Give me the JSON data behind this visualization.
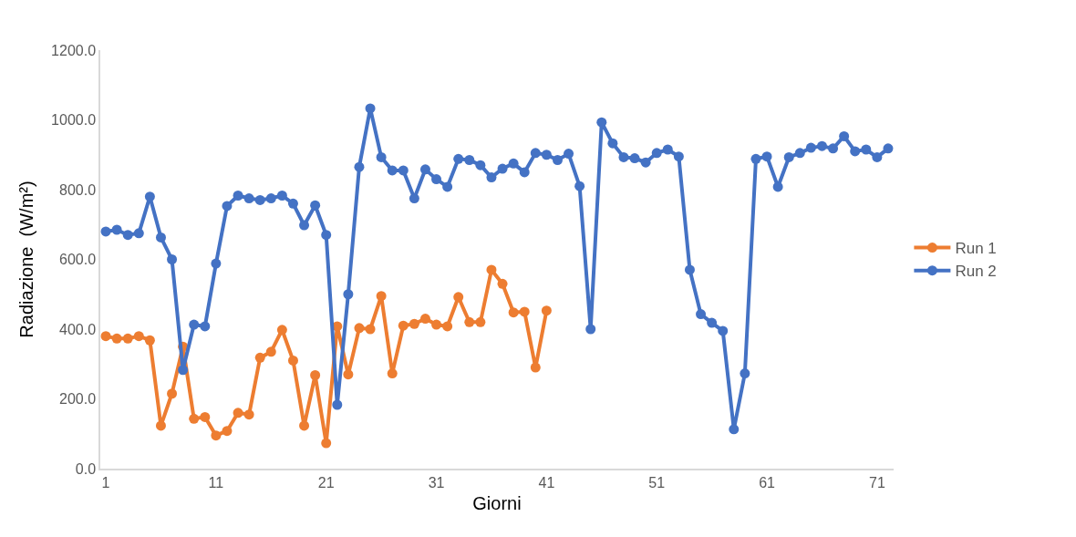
{
  "chart_data": {
    "type": "line",
    "xlabel": "Giorni",
    "ylabel": "Radiazione  (W/m²)",
    "x": [
      1,
      2,
      3,
      4,
      5,
      6,
      7,
      8,
      9,
      10,
      11,
      12,
      13,
      14,
      15,
      16,
      17,
      18,
      19,
      20,
      21,
      22,
      23,
      24,
      25,
      26,
      27,
      28,
      29,
      30,
      31,
      32,
      33,
      34,
      35,
      36,
      37,
      38,
      39,
      40,
      41,
      42,
      43,
      44,
      45,
      46,
      47,
      48,
      49,
      50,
      51,
      52,
      53,
      54,
      55,
      56,
      57,
      58,
      59,
      60,
      61,
      62,
      63,
      64,
      65,
      66,
      67,
      68,
      69,
      70,
      71,
      72
    ],
    "series": [
      {
        "name": "Run 1",
        "color": "#ed7d31",
        "x": [
          1,
          2,
          3,
          4,
          5,
          6,
          7,
          8,
          9,
          10,
          11,
          12,
          13,
          14,
          15,
          16,
          17,
          18,
          19,
          20,
          21,
          22,
          23,
          24,
          25,
          26,
          27,
          28,
          29,
          30,
          31,
          32,
          33,
          34,
          35,
          36,
          37,
          38,
          39,
          40,
          41
        ],
        "values": [
          380,
          373,
          373,
          380,
          368,
          123,
          215,
          350,
          143,
          148,
          95,
          108,
          160,
          155,
          318,
          335,
          398,
          310,
          123,
          268,
          73,
          408,
          270,
          403,
          400,
          495,
          273,
          410,
          415,
          430,
          413,
          408,
          492,
          420,
          420,
          570,
          530,
          448,
          450,
          290,
          453
        ]
      },
      {
        "name": "Run 2",
        "color": "#4472c4",
        "values": [
          680,
          685,
          670,
          675,
          780,
          663,
          600,
          283,
          413,
          408,
          588,
          753,
          783,
          775,
          770,
          775,
          783,
          760,
          698,
          755,
          670,
          183,
          500,
          865,
          1033,
          893,
          855,
          855,
          775,
          858,
          830,
          808,
          888,
          885,
          870,
          835,
          860,
          875,
          850,
          905,
          900,
          885,
          903,
          810,
          400,
          993,
          933,
          893,
          890,
          878,
          905,
          915,
          895,
          570,
          443,
          418,
          395,
          113,
          273,
          888,
          895,
          808,
          893,
          905,
          920,
          925,
          918,
          953,
          910,
          915,
          893,
          918
        ]
      }
    ],
    "xlim": [
      0.5,
      72.5
    ],
    "xticks": [
      1,
      11,
      21,
      31,
      41,
      51,
      61,
      71
    ],
    "ylim": [
      0,
      1200
    ],
    "yticks": [
      {
        "value": 0,
        "label": "0.0"
      },
      {
        "value": 200,
        "label": "200.0"
      },
      {
        "value": 400,
        "label": "400.0"
      },
      {
        "value": 600,
        "label": "600.0"
      },
      {
        "value": 800,
        "label": "800.0"
      },
      {
        "value": 1000,
        "label": "1000.0"
      },
      {
        "value": 1200,
        "label": "1200.0"
      }
    ],
    "grid": false,
    "legend": "right",
    "marker": "circle",
    "line_style": "solid"
  }
}
